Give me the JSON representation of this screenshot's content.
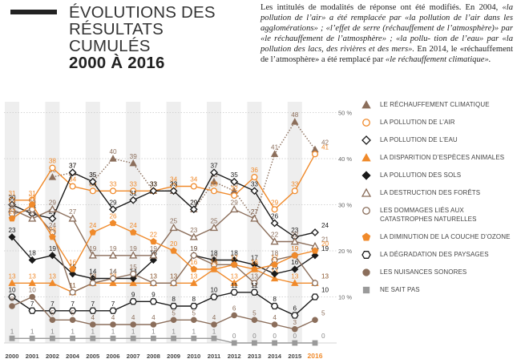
{
  "header": {
    "title_line1": "ÉVOLUTIONS DES",
    "title_line2": "RÉSULTATS CUMULÉS",
    "title_line3": "2000 À 2016"
  },
  "note": {
    "p1": "Les intitulés de modalités de réponse ont été modifiés. En 2004,",
    "p2": "«la pollution de l’air» a été remplacée par «la pollution de l’air",
    "p3": "dans les agglomérations» ; «l’effet de serre (réchauffement de",
    "p4": "l’atmosphère)» par «le réchauffement de l’atmosphère» ; «la pollu-",
    "p5": "tion de l’eau» par «la pollution des lacs, des rivières et des mers».",
    "p6": "En 2014, le «réchauffement de l’atmosphère» a été remplacé par",
    "p7": "«le réchauffement climatique»."
  },
  "chart_data": {
    "type": "line",
    "x": [
      "2000",
      "2001",
      "2002",
      "2004",
      "2005",
      "2006",
      "2007",
      "2008",
      "2009",
      "2010",
      "2011",
      "2012",
      "2013",
      "2014",
      "2015",
      "2016"
    ],
    "y_ticks": [
      "0",
      "10 %",
      "20 %",
      "30 %",
      "40 %",
      "50 %"
    ],
    "ylim": [
      0,
      52
    ],
    "colors": {
      "orange": "#f08a2b",
      "brown": "#8b6e5b",
      "black": "#1a1a1a",
      "gray": "#9a9a9a",
      "band": "#eeeeee"
    },
    "series": [
      {
        "name": "LE RÉCHAUFFEMENT CLIMATIQUE",
        "color": "#8b6e5b",
        "marker": "triangle",
        "fill": true,
        "style": "dotted",
        "values": [
          null,
          null,
          36,
          37,
          35,
          40,
          39,
          33,
          33,
          29,
          35,
          33,
          27,
          41,
          48,
          42
        ]
      },
      {
        "name": "LA POLLUTION DE L’AIR",
        "color": "#f08a2b",
        "marker": "circle",
        "fill": false,
        "style": "solid",
        "values": [
          31,
          31,
          38,
          34,
          33,
          33,
          33,
          33,
          34,
          34,
          33,
          32,
          36,
          29,
          33,
          41
        ]
      },
      {
        "name": "LA POLLUTION DE L’EAU",
        "color": "#1a1a1a",
        "marker": "diamond",
        "fill": false,
        "style": "solid",
        "values": [
          30,
          28,
          27,
          37,
          35,
          29,
          31,
          33,
          33,
          29,
          37,
          35,
          33,
          26,
          23,
          24
        ]
      },
      {
        "name": "LA DISPARITION D’ESPÈCES ANIMALES",
        "color": "#f08a2b",
        "marker": "triangle",
        "fill": true,
        "style": "solid",
        "values": [
          13,
          13,
          13,
          11,
          13,
          13,
          13,
          13,
          13,
          13,
          16,
          13,
          16,
          14,
          13,
          13
        ]
      },
      {
        "name": "LA POLLUTION DES SOLS",
        "color": "#1a1a1a",
        "marker": "diamond",
        "fill": true,
        "style": "solid",
        "values": [
          23,
          18,
          19,
          15,
          14,
          14,
          14,
          18,
          null,
          19,
          18,
          18,
          17,
          15,
          16,
          19
        ]
      },
      {
        "name": "LA DESTRUCTION DES FORÊTS",
        "color": "#8b6e5b",
        "marker": "triangle",
        "fill": false,
        "style": "solid",
        "values": [
          29,
          27,
          29,
          27,
          19,
          19,
          19,
          19,
          25,
          23,
          25,
          29,
          27,
          22,
          22,
          21
        ]
      },
      {
        "name": "LES DOMMAGES LIÉS AUX CATASTROPHES NATURELLES",
        "color": "#8b6e5b",
        "marker": "circle",
        "fill": false,
        "style": "solid",
        "values": [
          28,
          29,
          24,
          11,
          13,
          14,
          15,
          13,
          13,
          19,
          17,
          17,
          13,
          18,
          19,
          13
        ]
      },
      {
        "name": "LA DIMINUTION DE LA COUCHE D’OZONE",
        "color": "#f08a2b",
        "marker": "pentagon",
        "fill": true,
        "style": "solid",
        "values": [
          27,
          30,
          23,
          16,
          24,
          26,
          24,
          22,
          20,
          16,
          16,
          17,
          16,
          17,
          19,
          20
        ]
      },
      {
        "name": "LA DÉGRADATION DES PAYSAGES",
        "color": "#1a1a1a",
        "marker": "hexagon",
        "fill": false,
        "style": "solid",
        "values": [
          10,
          7,
          7,
          7,
          7,
          7,
          9,
          9,
          8,
          8,
          10,
          11,
          11,
          8,
          6,
          10
        ]
      },
      {
        "name": "LES NUISANCES SONORES",
        "color": "#8b6e5b",
        "marker": "circle",
        "fill": true,
        "style": "solid",
        "values": [
          8,
          10,
          5,
          5,
          4,
          4,
          4,
          4,
          5,
          5,
          4,
          6,
          5,
          4,
          3,
          5
        ]
      },
      {
        "name": "NE SAIT PAS",
        "color": "#9a9a9a",
        "marker": "square",
        "fill": true,
        "style": "solid",
        "values": [
          1,
          1,
          1,
          1,
          1,
          1,
          1,
          1,
          1,
          1,
          1,
          0,
          0,
          0,
          0,
          0
        ]
      }
    ]
  }
}
